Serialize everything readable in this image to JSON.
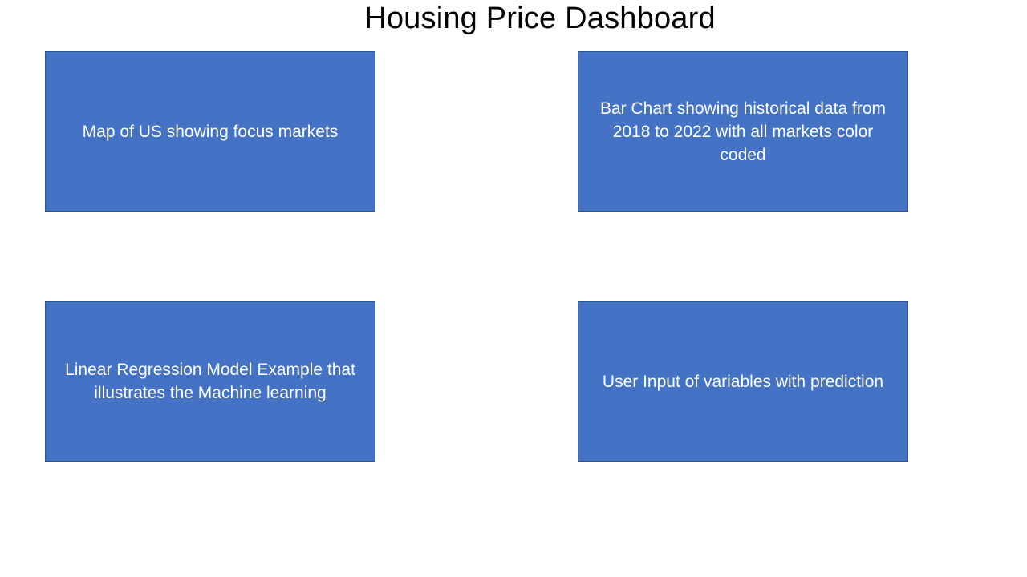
{
  "page": {
    "title": "Housing Price Dashboard"
  },
  "panels": [
    {
      "label": "Map of US showing focus markets"
    },
    {
      "label": "Bar Chart showing historical data from 2018 to 2022 with all markets color coded"
    },
    {
      "label": "Linear Regression Model Example that illustrates the Machine learning"
    },
    {
      "label": "User Input of variables with prediction"
    }
  ],
  "colors": {
    "panel_fill": "#4472c4",
    "panel_border": "#2f528f",
    "panel_text": "#ffffff",
    "title_text": "#000000"
  }
}
